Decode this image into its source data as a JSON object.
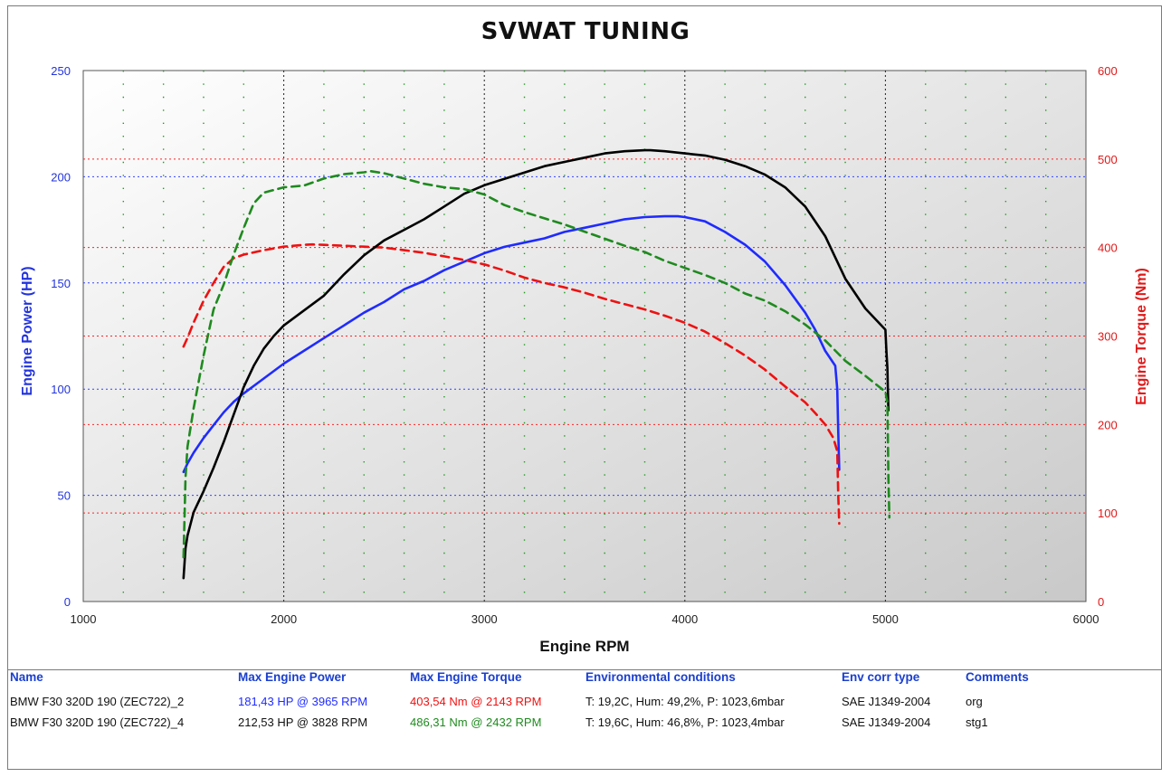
{
  "title": "SVWAT TUNING",
  "colors": {
    "power_axis": "#2233dd",
    "torque_axis": "#e01818",
    "org_power": "#1f2bff",
    "org_torque": "#ee1111",
    "stg1_power": "#000000",
    "stg1_torque": "#1e8a1e",
    "hgrid_power": "#3344ff",
    "hgrid_torque": "#ff2222",
    "vgrid_major": "#222222",
    "vgrid_minor": "#229922"
  },
  "chart_data": {
    "type": "line",
    "title": "SVWAT TUNING",
    "xlabel": "Engine RPM",
    "ylabel_left": "Engine Power (HP)",
    "ylabel_right": "Engine Torque (Nm)",
    "xlim": [
      1000,
      6000
    ],
    "ylim_left": [
      0,
      250
    ],
    "ylim_right": [
      0,
      600
    ],
    "x_ticks": [
      1000,
      2000,
      3000,
      4000,
      5000,
      6000
    ],
    "y_ticks_left": [
      0,
      50,
      100,
      150,
      200,
      250
    ],
    "y_ticks_right": [
      0,
      100,
      200,
      300,
      400,
      500,
      600
    ],
    "grid": true,
    "background": "gradient light gray",
    "series": [
      {
        "name": "BMW F30 320D 190 (ZEC722)_2",
        "axis": "left",
        "quantity": "power",
        "color_key": "org_power",
        "dash": "solid",
        "x": [
          1500,
          1520,
          1550,
          1600,
          1650,
          1700,
          1750,
          1800,
          1900,
          2000,
          2100,
          2200,
          2300,
          2400,
          2500,
          2600,
          2700,
          2800,
          2900,
          3000,
          3100,
          3200,
          3300,
          3400,
          3500,
          3600,
          3700,
          3800,
          3900,
          3965,
          4000,
          4100,
          4200,
          4300,
          4400,
          4500,
          4600,
          4650,
          4700,
          4750,
          4760,
          4765,
          4770
        ],
        "y": [
          61,
          65,
          70,
          77,
          83,
          89,
          94,
          98,
          105,
          112,
          118,
          124,
          130,
          136,
          141,
          147,
          151,
          156,
          160,
          164,
          167,
          169,
          171,
          174,
          176,
          178,
          180,
          181,
          181.4,
          181.4,
          181,
          179,
          174,
          168,
          160,
          149,
          136,
          128,
          118,
          111,
          100,
          80,
          62
        ]
      },
      {
        "name": "BMW F30 320D 190 (ZEC722)_2",
        "axis": "right",
        "quantity": "torque",
        "color_key": "org_torque",
        "dash": "dashed",
        "x": [
          1500,
          1520,
          1550,
          1600,
          1650,
          1700,
          1750,
          1800,
          1900,
          2000,
          2100,
          2143,
          2200,
          2300,
          2400,
          2500,
          2600,
          2700,
          2800,
          2900,
          3000,
          3100,
          3200,
          3300,
          3400,
          3500,
          3600,
          3700,
          3800,
          3900,
          4000,
          4100,
          4200,
          4300,
          4400,
          4500,
          4600,
          4650,
          4700,
          4740,
          4760,
          4765,
          4770
        ],
        "y": [
          288,
          298,
          315,
          340,
          360,
          378,
          388,
          392,
          397,
          401,
          403,
          403.5,
          403,
          402,
          401,
          400,
          397,
          394,
          390,
          386,
          381,
          374,
          366,
          360,
          355,
          349,
          342,
          336,
          330,
          323,
          315,
          305,
          292,
          278,
          262,
          243,
          225,
          213,
          200,
          185,
          170,
          120,
          88
        ]
      },
      {
        "name": "BMW F30 320D 190 (ZEC722)_4",
        "axis": "left",
        "quantity": "power",
        "color_key": "stg1_power",
        "dash": "solid",
        "x": [
          1500,
          1510,
          1520,
          1550,
          1600,
          1650,
          1700,
          1750,
          1800,
          1850,
          1900,
          1950,
          2000,
          2100,
          2200,
          2300,
          2400,
          2500,
          2600,
          2700,
          2800,
          2900,
          3000,
          3100,
          3200,
          3300,
          3400,
          3500,
          3600,
          3700,
          3800,
          3828,
          3900,
          4000,
          4100,
          4200,
          4300,
          4400,
          4500,
          4600,
          4700,
          4750,
          4800,
          4900,
          5000,
          5005,
          5010,
          5012,
          5015
        ],
        "y": [
          11,
          25,
          31,
          42,
          52,
          63,
          75,
          88,
          101,
          111,
          119,
          125,
          130,
          137,
          144,
          154,
          163,
          170,
          175,
          180,
          186,
          192,
          196,
          199,
          202,
          205,
          207,
          209,
          211,
          212,
          212.5,
          212.5,
          212,
          211,
          210,
          208,
          205,
          201,
          195,
          186,
          172,
          162,
          152,
          138,
          128,
          118,
          110,
          100,
          90
        ]
      },
      {
        "name": "BMW F30 320D 190 (ZEC722)_4",
        "axis": "right",
        "quantity": "torque",
        "color_key": "stg1_torque",
        "dash": "dashed",
        "x": [
          1500,
          1510,
          1520,
          1550,
          1600,
          1650,
          1700,
          1750,
          1800,
          1850,
          1900,
          2000,
          2100,
          2200,
          2300,
          2400,
          2432,
          2500,
          2600,
          2700,
          2800,
          2900,
          3000,
          3100,
          3200,
          3300,
          3400,
          3500,
          3600,
          3700,
          3800,
          3900,
          4000,
          4100,
          4200,
          4300,
          4400,
          4500,
          4600,
          4700,
          4800,
          4900,
          5000,
          5010,
          5015,
          5020
        ],
        "y": [
          50,
          140,
          175,
          218,
          278,
          330,
          358,
          392,
          422,
          450,
          462,
          468,
          470,
          478,
          483,
          485,
          486.3,
          484,
          478,
          472,
          468,
          466,
          460,
          448,
          440,
          433,
          426,
          418,
          410,
          402,
          395,
          385,
          377,
          369,
          360,
          348,
          340,
          328,
          313,
          295,
          272,
          255,
          237,
          225,
          140,
          95
        ]
      }
    ],
    "legend_table": {
      "headers": [
        "Name",
        "Max Engine Power",
        "Max Engine Torque",
        "Environmental conditions",
        "Env corr type",
        "Comments"
      ],
      "rows": [
        {
          "name": "BMW F30 320D 190 (ZEC722)_2",
          "max_power": "181,43 HP @ 3965 RPM",
          "max_torque": "403,54 Nm @ 2143 RPM",
          "env": "T: 19,2C, Hum: 49,2%, P: 1023,6mbar",
          "corr": "SAE J1349-2004",
          "comment": "org"
        },
        {
          "name": "BMW F30 320D 190 (ZEC722)_4",
          "max_power": "212,53 HP @ 3828 RPM",
          "max_torque": "486,31 Nm @ 2432 RPM",
          "env": "T: 19,6C, Hum: 46,8%, P: 1023,4mbar",
          "corr": "SAE J1349-2004",
          "comment": "stg1"
        }
      ]
    }
  }
}
